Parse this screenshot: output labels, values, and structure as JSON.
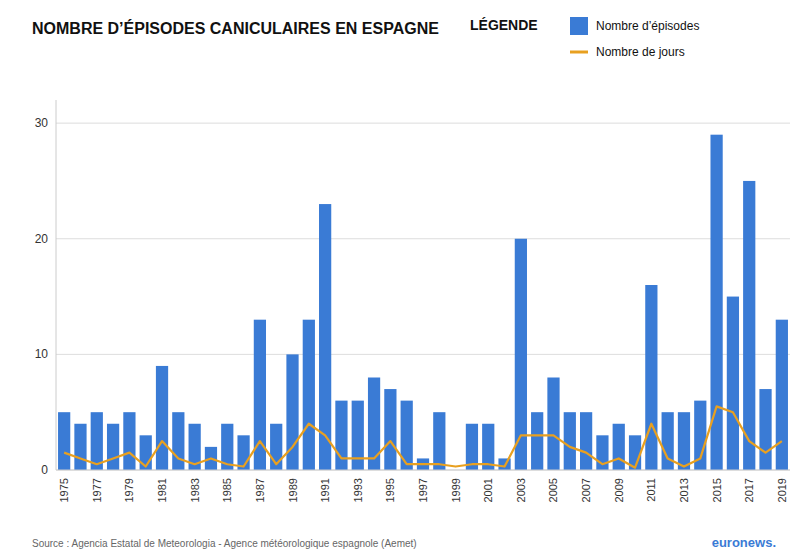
{
  "chart_data": {
    "type": "bar",
    "title": "NOMBRE D’ÉPISODES CANICULAIRES EN ESPAGNE",
    "legend_title": "LÉGENDE",
    "annotations": [
      "Source : Agencia Estatal de Meteorologia - Agence météorologique espagnole (Aemet)",
      "euronews."
    ],
    "categories": [
      "1975",
      null,
      "1977",
      null,
      "1979",
      null,
      "1981",
      null,
      "1983",
      null,
      "1985",
      null,
      "1987",
      null,
      "1989",
      null,
      "1991",
      null,
      "1993",
      null,
      "1995",
      null,
      "1997",
      null,
      "1999",
      null,
      "2001",
      null,
      "2003",
      null,
      "2005",
      null,
      "2007",
      null,
      "2009",
      null,
      "2011",
      null,
      "2013",
      null,
      "2015",
      null,
      "2017",
      null,
      "2019"
    ],
    "series": [
      {
        "name": "Nombre d’épisodes",
        "type": "bar",
        "color": "#3a7bd5",
        "values": [
          5,
          4,
          5,
          4,
          5,
          3,
          9,
          5,
          4,
          2,
          4,
          3,
          13,
          4,
          10,
          13,
          23,
          6,
          6,
          8,
          7,
          6,
          1,
          5,
          0,
          4,
          4,
          1,
          20,
          5,
          8,
          5,
          5,
          3,
          4,
          3,
          16,
          5,
          5,
          6,
          29,
          15,
          25,
          7,
          13
        ]
      },
      {
        "name": "Nombre de jours",
        "type": "line",
        "color": "#e8a020",
        "values": [
          1.5,
          1.0,
          0.5,
          1.0,
          1.5,
          0.3,
          2.5,
          1.0,
          0.5,
          1.0,
          0.5,
          0.3,
          2.5,
          0.5,
          2.0,
          4.0,
          3.0,
          1.0,
          1.0,
          1.0,
          2.5,
          0.5,
          0.5,
          0.5,
          0.3,
          0.5,
          0.5,
          0.3,
          3.0,
          3.0,
          3.0,
          2.0,
          1.5,
          0.5,
          1.0,
          0.2,
          4.0,
          1.0,
          0.3,
          1.0,
          5.5,
          5.0,
          2.5,
          1.5,
          2.5
        ]
      }
    ],
    "ylim": [
      0,
      32
    ],
    "yticks": [
      0,
      10,
      20,
      30
    ],
    "grid": true,
    "legend": "upper right"
  }
}
